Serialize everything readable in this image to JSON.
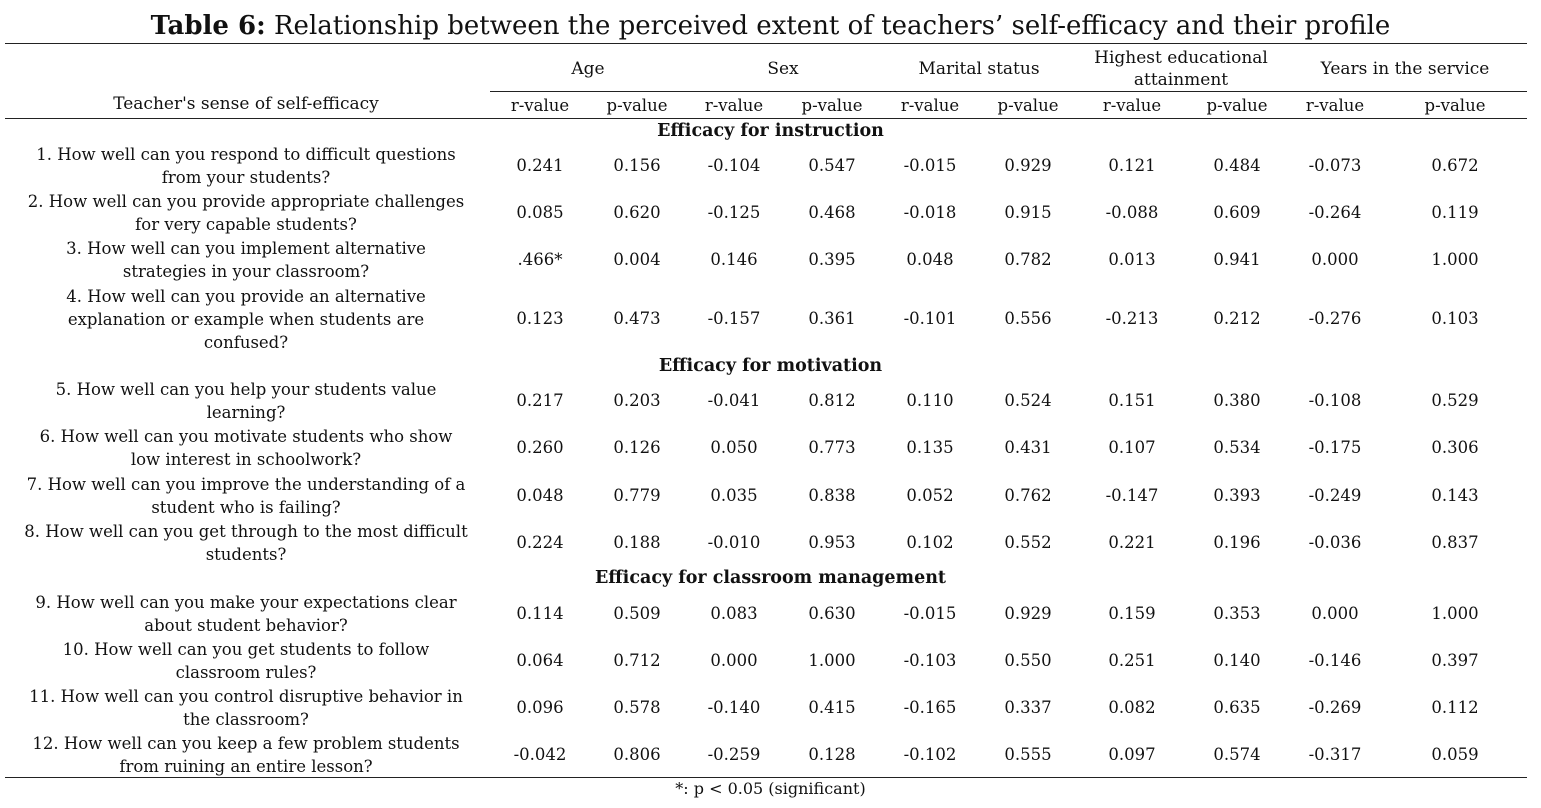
{
  "title": {
    "bold": "Table 6:",
    "rest": "Relationship between the perceived extent of teachers’ self-efficacy and their profile"
  },
  "table": {
    "row_header": "Teacher's sense of self-efficacy",
    "groups": [
      "Age",
      "Sex",
      "Marital status",
      "Highest educational attainment",
      "Years in the service"
    ],
    "group_lines": [
      [
        "Age"
      ],
      [
        "Sex"
      ],
      [
        "Marital status"
      ],
      [
        "Highest educational",
        "attainment"
      ],
      [
        "Years in the service"
      ]
    ],
    "subheaders": [
      "r-value",
      "p-value",
      "r-value",
      "p-value",
      "r-value",
      "p-value",
      "r-value",
      "p-value",
      "r-value",
      "p-value"
    ],
    "sections": [
      {
        "name": "Efficacy for instruction",
        "rows": [
          {
            "lines": [
              "1. How well can you respond to difficult questions",
              "from your students?"
            ],
            "values": [
              "0.241",
              "0.156",
              "-0.104",
              "0.547",
              "-0.015",
              "0.929",
              "0.121",
              "0.484",
              "-0.073",
              "0.672"
            ]
          },
          {
            "lines": [
              "2. How well can you provide appropriate challenges",
              "for very capable students?"
            ],
            "values": [
              "0.085",
              "0.620",
              "-0.125",
              "0.468",
              "-0.018",
              "0.915",
              "-0.088",
              "0.609",
              "-0.264",
              "0.119"
            ]
          },
          {
            "lines": [
              "3. How well can you implement alternative",
              "strategies in your classroom?"
            ],
            "values": [
              ".466*",
              "0.004",
              "0.146",
              "0.395",
              "0.048",
              "0.782",
              "0.013",
              "0.941",
              "0.000",
              "1.000"
            ]
          },
          {
            "lines": [
              "4. How well can you provide an alternative",
              "explanation or example when students are",
              "confused?"
            ],
            "values": [
              "0.123",
              "0.473",
              "-0.157",
              "0.361",
              "-0.101",
              "0.556",
              "-0.213",
              "0.212",
              "-0.276",
              "0.103"
            ]
          }
        ]
      },
      {
        "name": "Efficacy for motivation",
        "rows": [
          {
            "lines": [
              "5. How well can you help your students value",
              "learning?"
            ],
            "values": [
              "0.217",
              "0.203",
              "-0.041",
              "0.812",
              "0.110",
              "0.524",
              "0.151",
              "0.380",
              "-0.108",
              "0.529"
            ]
          },
          {
            "lines": [
              "6. How well can you motivate students who show",
              "low interest in schoolwork?"
            ],
            "values": [
              "0.260",
              "0.126",
              "0.050",
              "0.773",
              "0.135",
              "0.431",
              "0.107",
              "0.534",
              "-0.175",
              "0.306"
            ]
          },
          {
            "lines": [
              "7. How well can you improve the understanding of a",
              "student who is failing?"
            ],
            "values": [
              "0.048",
              "0.779",
              "0.035",
              "0.838",
              "0.052",
              "0.762",
              "-0.147",
              "0.393",
              "-0.249",
              "0.143"
            ]
          },
          {
            "lines": [
              "8. How well can you get through to the most difficult",
              "students?"
            ],
            "values": [
              "0.224",
              "0.188",
              "-0.010",
              "0.953",
              "0.102",
              "0.552",
              "0.221",
              "0.196",
              "-0.036",
              "0.837"
            ]
          }
        ]
      },
      {
        "name": "Efficacy for classroom management",
        "rows": [
          {
            "lines": [
              "9. How well can you make your expectations clear",
              "about student behavior?"
            ],
            "values": [
              "0.114",
              "0.509",
              "0.083",
              "0.630",
              "-0.015",
              "0.929",
              "0.159",
              "0.353",
              "0.000",
              "1.000"
            ]
          },
          {
            "lines": [
              "10. How well can you get students to follow",
              "classroom rules?"
            ],
            "values": [
              "0.064",
              "0.712",
              "0.000",
              "1.000",
              "-0.103",
              "0.550",
              "0.251",
              "0.140",
              "-0.146",
              "0.397"
            ]
          },
          {
            "lines": [
              "11. How well can you control disruptive behavior in",
              "the classroom?"
            ],
            "values": [
              "0.096",
              "0.578",
              "-0.140",
              "0.415",
              "-0.165",
              "0.337",
              "0.082",
              "0.635",
              "-0.269",
              "0.112"
            ]
          },
          {
            "lines": [
              "12. How well can you keep a few problem students",
              "from ruining an entire lesson?"
            ],
            "values": [
              "-0.042",
              "0.806",
              "-0.259",
              "0.128",
              "-0.102",
              "0.555",
              "0.097",
              "0.574",
              "-0.317",
              "0.059"
            ]
          }
        ]
      }
    ]
  },
  "footnote": "*: p < 0.05 (significant)"
}
